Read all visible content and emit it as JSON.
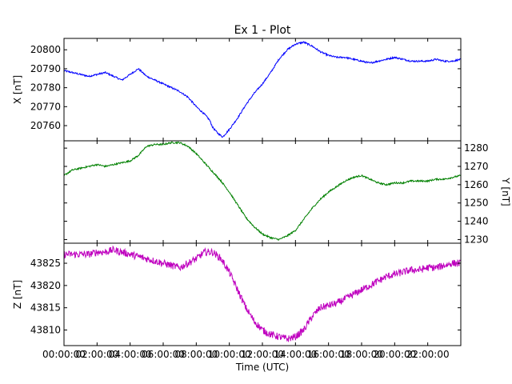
{
  "figure": {
    "title": "Ex 1 - Plot",
    "xlabel": "Time (UTC)"
  },
  "chart_data": [
    {
      "type": "line",
      "series": [
        {
          "name": "",
          "color": "#0000ff",
          "x": [
            0.0,
            0.5,
            1.0,
            1.5,
            2.0,
            2.5,
            3.0,
            3.5,
            4.0,
            4.5,
            5.0,
            5.5,
            6.0,
            6.5,
            7.0,
            7.5,
            8.0,
            8.5,
            8.8,
            9.0,
            9.3,
            9.6,
            10.0,
            10.5,
            11.0,
            11.5,
            12.0,
            12.5,
            13.0,
            13.5,
            14.0,
            14.5,
            15.0,
            15.5,
            16.0,
            16.5,
            17.0,
            17.5,
            18.0,
            18.5,
            19.0,
            19.5,
            20.0,
            20.5,
            21.0,
            21.5,
            22.0,
            22.5,
            23.0,
            23.5,
            24.0
          ],
          "y": [
            20789,
            20788,
            20787,
            20786,
            20787,
            20788,
            20786,
            20784,
            20787,
            20790,
            20786,
            20784,
            20782,
            20780,
            20778,
            20775,
            20770,
            20766,
            20763,
            20759,
            20756,
            20754,
            20758,
            20764,
            20771,
            20777,
            20782,
            20788,
            20795,
            20800,
            20803,
            20804,
            20802,
            20799,
            20797,
            20796,
            20796,
            20795,
            20794,
            20793,
            20794,
            20795,
            20796,
            20795,
            20794,
            20794,
            20794,
            20795,
            20794,
            20794,
            20795
          ]
        }
      ],
      "ylabel": "X [nT]",
      "ylim": [
        20752,
        20806
      ],
      "yticks": [
        20760,
        20770,
        20780,
        20790,
        20800
      ],
      "y_axis_side": "left"
    },
    {
      "type": "line",
      "series": [
        {
          "name": "",
          "color": "#008000",
          "x": [
            0.0,
            0.5,
            1.0,
            1.5,
            2.0,
            2.5,
            3.0,
            3.5,
            4.0,
            4.5,
            5.0,
            5.5,
            6.0,
            6.5,
            7.0,
            7.5,
            8.0,
            8.5,
            9.0,
            9.5,
            10.0,
            10.5,
            11.0,
            11.5,
            12.0,
            12.5,
            13.0,
            13.5,
            14.0,
            14.5,
            15.0,
            15.5,
            16.0,
            16.5,
            17.0,
            17.5,
            18.0,
            18.5,
            19.0,
            19.5,
            20.0,
            20.5,
            21.0,
            21.5,
            22.0,
            22.5,
            23.0,
            23.5,
            24.0
          ],
          "y": [
            1265,
            1268,
            1269,
            1270,
            1271,
            1270,
            1271,
            1272,
            1273,
            1276,
            1281,
            1282,
            1282,
            1283,
            1283,
            1281,
            1277,
            1272,
            1267,
            1262,
            1256,
            1249,
            1242,
            1237,
            1233,
            1231,
            1230,
            1232,
            1235,
            1241,
            1247,
            1252,
            1256,
            1259,
            1262,
            1264,
            1265,
            1263,
            1261,
            1260,
            1261,
            1261,
            1262,
            1262,
            1262,
            1263,
            1263,
            1264,
            1265
          ]
        }
      ],
      "ylabel": "Y [nT]",
      "ylim": [
        1228,
        1284
      ],
      "yticks": [
        1230,
        1240,
        1250,
        1260,
        1270,
        1280
      ],
      "y_axis_side": "right"
    },
    {
      "type": "line",
      "series": [
        {
          "name": "",
          "color": "#bf00bf",
          "x": [
            0.0,
            0.5,
            1.0,
            1.5,
            2.0,
            2.5,
            3.0,
            3.5,
            4.0,
            4.5,
            5.0,
            5.5,
            6.0,
            6.5,
            7.0,
            7.5,
            8.0,
            8.5,
            9.0,
            9.5,
            10.0,
            10.5,
            11.0,
            11.5,
            12.0,
            12.5,
            13.0,
            13.5,
            14.0,
            14.5,
            15.0,
            15.5,
            16.0,
            16.5,
            17.0,
            17.5,
            18.0,
            18.5,
            19.0,
            19.5,
            20.0,
            20.5,
            21.0,
            21.5,
            22.0,
            22.5,
            23.0,
            23.5,
            24.0
          ],
          "y": [
            43827,
            43827,
            43827,
            43827,
            43827.5,
            43827.5,
            43828,
            43827.5,
            43827,
            43826.5,
            43826,
            43825.5,
            43825,
            43824.5,
            43824,
            43825,
            43826,
            43827.5,
            43827.5,
            43826,
            43823,
            43819,
            43815,
            43812,
            43810,
            43809,
            43808.5,
            43808,
            43808.5,
            43810,
            43813,
            43815,
            43815.5,
            43816,
            43817,
            43818,
            43819,
            43820,
            43821,
            43822,
            43822.5,
            43823,
            43823.5,
            43823.5,
            43824,
            43824,
            43824.5,
            43825,
            43825
          ]
        }
      ],
      "ylabel": "Z [nT]",
      "ylim": [
        43806.5,
        43829.5
      ],
      "yticks": [
        43810,
        43815,
        43820,
        43825
      ],
      "y_axis_side": "left"
    }
  ],
  "x_axis": {
    "range": [
      0,
      24
    ],
    "tick_values": [
      0,
      2,
      4,
      6,
      8,
      10,
      12,
      14,
      16,
      18,
      20,
      22
    ],
    "tick_labels": [
      "00:00:00",
      "02:00:00",
      "04:00:00",
      "06:00:00",
      "08:00:00",
      "10:00:00",
      "12:00:00",
      "14:00:00",
      "16:00:00",
      "18:00:00",
      "20:00:00",
      "22:00:00"
    ]
  }
}
